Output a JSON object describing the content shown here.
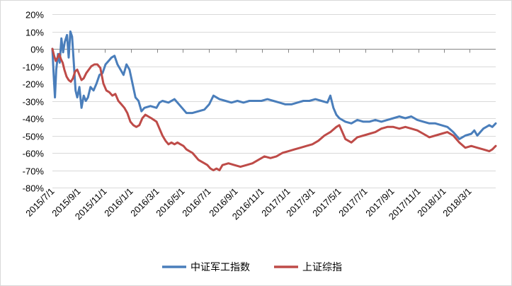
{
  "chart_data": {
    "type": "line",
    "title": "",
    "xlabel": "",
    "ylabel": "",
    "ylim": [
      -80,
      20
    ],
    "y_unit": "%",
    "y_ticks": [
      "20%",
      "10%",
      "0%",
      "-10%",
      "-20%",
      "-30%",
      "-40%",
      "-50%",
      "-60%",
      "-70%",
      "-80%"
    ],
    "x_range": [
      "2015-07-01",
      "2018-05-01"
    ],
    "x_ticks": [
      "2015/7/1",
      "2015/9/1",
      "2015/11/1",
      "2016/1/1",
      "2016/3/1",
      "2016/5/1",
      "2016/7/1",
      "2016/9/1",
      "2016/11/1",
      "2017/1/1",
      "2017/3/1",
      "2017/5/1",
      "2017/7/1",
      "2017/9/1",
      "2017/11/1",
      "2018/1/1",
      "2018/3/1"
    ],
    "grid": true,
    "legend_position": "bottom",
    "series": [
      {
        "name": "中证军工指数",
        "color": "#4a7ebb",
        "points": [
          [
            "2015-07-01",
            0
          ],
          [
            "2015-07-04",
            -15
          ],
          [
            "2015-07-07",
            -28
          ],
          [
            "2015-07-10",
            -12
          ],
          [
            "2015-07-14",
            -3
          ],
          [
            "2015-07-18",
            -8
          ],
          [
            "2015-07-22",
            6
          ],
          [
            "2015-07-26",
            -2
          ],
          [
            "2015-07-30",
            4
          ],
          [
            "2015-08-04",
            8
          ],
          [
            "2015-08-08",
            -5
          ],
          [
            "2015-08-12",
            10
          ],
          [
            "2015-08-16",
            7
          ],
          [
            "2015-08-20",
            -8
          ],
          [
            "2015-08-24",
            -24
          ],
          [
            "2015-08-28",
            -28
          ],
          [
            "2015-09-02",
            -22
          ],
          [
            "2015-09-07",
            -34
          ],
          [
            "2015-09-12",
            -27
          ],
          [
            "2015-09-17",
            -30
          ],
          [
            "2015-09-22",
            -28
          ],
          [
            "2015-09-28",
            -22
          ],
          [
            "2015-10-05",
            -24
          ],
          [
            "2015-10-12",
            -20
          ],
          [
            "2015-10-19",
            -15
          ],
          [
            "2015-10-26",
            -14
          ],
          [
            "2015-11-02",
            -9
          ],
          [
            "2015-11-09",
            -7
          ],
          [
            "2015-11-16",
            -5
          ],
          [
            "2015-11-23",
            -4
          ],
          [
            "2015-11-30",
            -9
          ],
          [
            "2015-12-07",
            -12
          ],
          [
            "2015-12-14",
            -15
          ],
          [
            "2015-12-21",
            -9
          ],
          [
            "2015-12-28",
            -12
          ],
          [
            "2016-01-04",
            -20
          ],
          [
            "2016-01-11",
            -28
          ],
          [
            "2016-01-18",
            -30
          ],
          [
            "2016-01-25",
            -36
          ],
          [
            "2016-02-01",
            -34
          ],
          [
            "2016-02-15",
            -33
          ],
          [
            "2016-02-29",
            -34
          ],
          [
            "2016-03-07",
            -31
          ],
          [
            "2016-03-14",
            -30
          ],
          [
            "2016-03-28",
            -31
          ],
          [
            "2016-04-11",
            -29
          ],
          [
            "2016-04-25",
            -33
          ],
          [
            "2016-05-09",
            -37
          ],
          [
            "2016-05-23",
            -37
          ],
          [
            "2016-06-06",
            -36
          ],
          [
            "2016-06-20",
            -35
          ],
          [
            "2016-07-01",
            -32
          ],
          [
            "2016-07-11",
            -27
          ],
          [
            "2016-07-25",
            -29
          ],
          [
            "2016-08-08",
            -30
          ],
          [
            "2016-08-22",
            -31
          ],
          [
            "2016-09-05",
            -30
          ],
          [
            "2016-09-19",
            -31
          ],
          [
            "2016-10-03",
            -30
          ],
          [
            "2016-10-17",
            -30
          ],
          [
            "2016-10-31",
            -30
          ],
          [
            "2016-11-14",
            -29
          ],
          [
            "2016-11-28",
            -30
          ],
          [
            "2016-12-12",
            -31
          ],
          [
            "2016-12-26",
            -32
          ],
          [
            "2017-01-09",
            -32
          ],
          [
            "2017-01-23",
            -31
          ],
          [
            "2017-02-06",
            -30
          ],
          [
            "2017-02-20",
            -30
          ],
          [
            "2017-03-06",
            -29
          ],
          [
            "2017-03-20",
            -30
          ],
          [
            "2017-04-03",
            -31
          ],
          [
            "2017-04-10",
            -27
          ],
          [
            "2017-04-17",
            -34
          ],
          [
            "2017-04-24",
            -38
          ],
          [
            "2017-05-01",
            -40
          ],
          [
            "2017-05-15",
            -42
          ],
          [
            "2017-05-29",
            -43
          ],
          [
            "2017-06-12",
            -41
          ],
          [
            "2017-06-26",
            -42
          ],
          [
            "2017-07-10",
            -42
          ],
          [
            "2017-07-24",
            -41
          ],
          [
            "2017-08-07",
            -42
          ],
          [
            "2017-08-21",
            -41
          ],
          [
            "2017-09-04",
            -40
          ],
          [
            "2017-09-18",
            -39
          ],
          [
            "2017-10-02",
            -40
          ],
          [
            "2017-10-16",
            -39
          ],
          [
            "2017-10-30",
            -41
          ],
          [
            "2017-11-13",
            -42
          ],
          [
            "2017-11-27",
            -43
          ],
          [
            "2017-12-11",
            -43
          ],
          [
            "2017-12-25",
            -44
          ],
          [
            "2018-01-08",
            -45
          ],
          [
            "2018-01-22",
            -48
          ],
          [
            "2018-02-05",
            -52
          ],
          [
            "2018-02-19",
            -50
          ],
          [
            "2018-03-05",
            -49
          ],
          [
            "2018-03-12",
            -47
          ],
          [
            "2018-03-19",
            -50
          ],
          [
            "2018-03-26",
            -48
          ],
          [
            "2018-04-02",
            -46
          ],
          [
            "2018-04-09",
            -45
          ],
          [
            "2018-04-16",
            -44
          ],
          [
            "2018-04-23",
            -45
          ],
          [
            "2018-05-01",
            -43
          ]
        ]
      },
      {
        "name": "上证综指",
        "color": "#be4b48",
        "points": [
          [
            "2015-07-01",
            0
          ],
          [
            "2015-07-05",
            -4
          ],
          [
            "2015-07-09",
            -7
          ],
          [
            "2015-07-13",
            -5
          ],
          [
            "2015-07-17",
            -3
          ],
          [
            "2015-07-21",
            -6
          ],
          [
            "2015-07-25",
            -8
          ],
          [
            "2015-07-29",
            -12
          ],
          [
            "2015-08-03",
            -16
          ],
          [
            "2015-08-08",
            -18
          ],
          [
            "2015-08-13",
            -19
          ],
          [
            "2015-08-18",
            -17
          ],
          [
            "2015-08-23",
            -13
          ],
          [
            "2015-08-28",
            -12
          ],
          [
            "2015-09-02",
            -15
          ],
          [
            "2015-09-07",
            -18
          ],
          [
            "2015-09-12",
            -17
          ],
          [
            "2015-09-18",
            -14
          ],
          [
            "2015-09-24",
            -12
          ],
          [
            "2015-09-30",
            -10
          ],
          [
            "2015-10-07",
            -9
          ],
          [
            "2015-10-14",
            -9
          ],
          [
            "2015-10-21",
            -11
          ],
          [
            "2015-10-28",
            -20
          ],
          [
            "2015-11-04",
            -24
          ],
          [
            "2015-11-11",
            -25
          ],
          [
            "2015-11-18",
            -27
          ],
          [
            "2015-11-25",
            -26
          ],
          [
            "2015-12-02",
            -30
          ],
          [
            "2015-12-09",
            -32
          ],
          [
            "2015-12-16",
            -34
          ],
          [
            "2015-12-23",
            -37
          ],
          [
            "2015-12-30",
            -42
          ],
          [
            "2016-01-06",
            -44
          ],
          [
            "2016-01-13",
            -45
          ],
          [
            "2016-01-20",
            -44
          ],
          [
            "2016-01-27",
            -40
          ],
          [
            "2016-02-03",
            -38
          ],
          [
            "2016-02-17",
            -40
          ],
          [
            "2016-02-29",
            -42
          ],
          [
            "2016-03-07",
            -46
          ],
          [
            "2016-03-14",
            -50
          ],
          [
            "2016-03-21",
            -53
          ],
          [
            "2016-03-28",
            -55
          ],
          [
            "2016-04-04",
            -54
          ],
          [
            "2016-04-11",
            -55
          ],
          [
            "2016-04-18",
            -54
          ],
          [
            "2016-04-25",
            -55
          ],
          [
            "2016-05-02",
            -56
          ],
          [
            "2016-05-09",
            -58
          ],
          [
            "2016-05-16",
            -59
          ],
          [
            "2016-05-23",
            -60
          ],
          [
            "2016-05-30",
            -62
          ],
          [
            "2016-06-06",
            -64
          ],
          [
            "2016-06-13",
            -65
          ],
          [
            "2016-06-20",
            -66
          ],
          [
            "2016-06-27",
            -67
          ],
          [
            "2016-07-04",
            -69
          ],
          [
            "2016-07-11",
            -70
          ],
          [
            "2016-07-18",
            -69
          ],
          [
            "2016-07-25",
            -70
          ],
          [
            "2016-08-01",
            -67
          ],
          [
            "2016-08-15",
            -66
          ],
          [
            "2016-08-29",
            -67
          ],
          [
            "2016-09-12",
            -68
          ],
          [
            "2016-09-26",
            -67
          ],
          [
            "2016-10-10",
            -66
          ],
          [
            "2016-10-24",
            -64
          ],
          [
            "2016-11-07",
            -62
          ],
          [
            "2016-11-21",
            -63
          ],
          [
            "2016-12-05",
            -62
          ],
          [
            "2016-12-19",
            -60
          ],
          [
            "2017-01-02",
            -59
          ],
          [
            "2017-01-16",
            -58
          ],
          [
            "2017-01-30",
            -57
          ],
          [
            "2017-02-13",
            -56
          ],
          [
            "2017-02-27",
            -55
          ],
          [
            "2017-03-13",
            -53
          ],
          [
            "2017-03-27",
            -50
          ],
          [
            "2017-04-10",
            -48
          ],
          [
            "2017-04-24",
            -45
          ],
          [
            "2017-05-01",
            -44
          ],
          [
            "2017-05-15",
            -52
          ],
          [
            "2017-05-29",
            -54
          ],
          [
            "2017-06-12",
            -51
          ],
          [
            "2017-06-26",
            -50
          ],
          [
            "2017-07-10",
            -49
          ],
          [
            "2017-07-24",
            -48
          ],
          [
            "2017-08-07",
            -46
          ],
          [
            "2017-08-21",
            -45
          ],
          [
            "2017-09-04",
            -45
          ],
          [
            "2017-09-18",
            -46
          ],
          [
            "2017-10-02",
            -45
          ],
          [
            "2017-10-16",
            -46
          ],
          [
            "2017-10-30",
            -47
          ],
          [
            "2017-11-13",
            -49
          ],
          [
            "2017-11-27",
            -51
          ],
          [
            "2017-12-11",
            -50
          ],
          [
            "2017-12-25",
            -49
          ],
          [
            "2018-01-08",
            -48
          ],
          [
            "2018-01-22",
            -50
          ],
          [
            "2018-02-05",
            -54
          ],
          [
            "2018-02-19",
            -57
          ],
          [
            "2018-03-05",
            -56
          ],
          [
            "2018-03-19",
            -57
          ],
          [
            "2018-04-02",
            -58
          ],
          [
            "2018-04-16",
            -59
          ],
          [
            "2018-04-23",
            -58
          ],
          [
            "2018-05-01",
            -56
          ]
        ]
      }
    ]
  }
}
